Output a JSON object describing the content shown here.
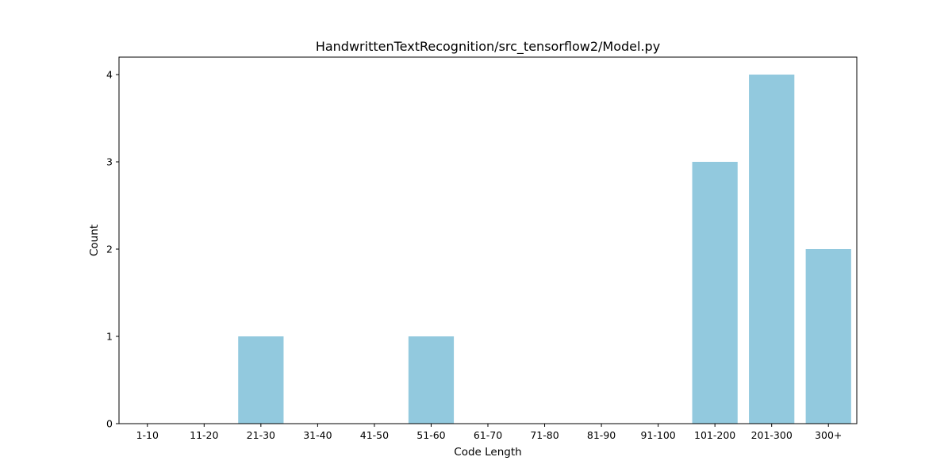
{
  "chart_data": {
    "type": "bar",
    "title": "HandwrittenTextRecognition/src_tensorflow2/Model.py",
    "xlabel": "Code Length",
    "ylabel": "Count",
    "categories": [
      "1-10",
      "11-20",
      "21-30",
      "31-40",
      "41-50",
      "51-60",
      "61-70",
      "71-80",
      "81-90",
      "91-100",
      "101-200",
      "201-300",
      "300+"
    ],
    "values": [
      0,
      0,
      1,
      0,
      0,
      1,
      0,
      0,
      0,
      0,
      3,
      4,
      2
    ],
    "ylim": [
      0,
      4.2
    ],
    "yticks": [
      0,
      1,
      2,
      3,
      4
    ],
    "bar_color": "#92c9de",
    "grid": false,
    "legend": "none"
  }
}
